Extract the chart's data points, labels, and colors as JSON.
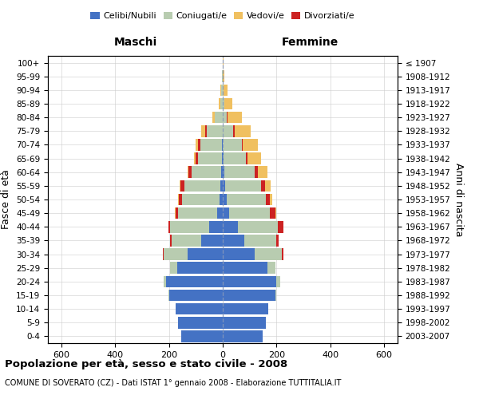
{
  "age_groups": [
    "0-4",
    "5-9",
    "10-14",
    "15-19",
    "20-24",
    "25-29",
    "30-34",
    "35-39",
    "40-44",
    "45-49",
    "50-54",
    "55-59",
    "60-64",
    "65-69",
    "70-74",
    "75-79",
    "80-84",
    "85-89",
    "90-94",
    "95-99",
    "100+"
  ],
  "birth_years": [
    "2003-2007",
    "1998-2002",
    "1993-1997",
    "1988-1992",
    "1983-1987",
    "1978-1982",
    "1973-1977",
    "1968-1972",
    "1963-1967",
    "1958-1962",
    "1953-1957",
    "1948-1952",
    "1943-1947",
    "1938-1942",
    "1933-1937",
    "1928-1932",
    "1923-1927",
    "1918-1922",
    "1913-1917",
    "1908-1912",
    "≤ 1907"
  ],
  "colors": {
    "celibe": "#4472C4",
    "coniugato": "#B8CCB0",
    "vedovo": "#F0C060",
    "divorziato": "#CC2222"
  },
  "maschi": {
    "celibe": [
      155,
      165,
      175,
      200,
      210,
      170,
      130,
      80,
      50,
      20,
      12,
      8,
      5,
      2,
      2,
      0,
      0,
      0,
      0,
      0,
      0
    ],
    "coniugato": [
      0,
      0,
      0,
      3,
      10,
      25,
      90,
      110,
      145,
      145,
      140,
      135,
      110,
      90,
      80,
      60,
      30,
      10,
      5,
      2,
      0
    ],
    "vedovo": [
      0,
      0,
      0,
      0,
      0,
      0,
      0,
      0,
      0,
      2,
      2,
      3,
      5,
      5,
      10,
      15,
      10,
      5,
      3,
      0,
      0
    ],
    "divorziato": [
      0,
      0,
      0,
      0,
      0,
      2,
      3,
      5,
      8,
      10,
      12,
      15,
      12,
      10,
      10,
      5,
      0,
      0,
      0,
      0,
      0
    ]
  },
  "femmine": {
    "nubile": [
      148,
      160,
      170,
      195,
      200,
      165,
      120,
      80,
      55,
      25,
      15,
      8,
      5,
      2,
      0,
      0,
      0,
      0,
      0,
      0,
      0
    ],
    "coniugata": [
      0,
      0,
      0,
      5,
      15,
      30,
      100,
      120,
      150,
      150,
      145,
      135,
      115,
      85,
      70,
      40,
      15,
      5,
      3,
      1,
      0
    ],
    "vedova": [
      0,
      0,
      0,
      0,
      0,
      0,
      0,
      0,
      2,
      5,
      10,
      20,
      35,
      50,
      55,
      60,
      55,
      30,
      15,
      5,
      2
    ],
    "divorziata": [
      0,
      0,
      0,
      0,
      0,
      2,
      5,
      8,
      20,
      20,
      15,
      15,
      10,
      5,
      5,
      5,
      2,
      0,
      0,
      0,
      0
    ]
  },
  "xlim": 650,
  "xticks": [
    -600,
    -400,
    -200,
    0,
    200,
    400,
    600
  ],
  "xticklabels": [
    "600",
    "400",
    "200",
    "0",
    "200",
    "400",
    "600"
  ],
  "title": "Popolazione per età, sesso e stato civile - 2008",
  "subtitle": "COMUNE DI SOVERATO (CZ) - Dati ISTAT 1° gennaio 2008 - Elaborazione TUTTITALIA.IT",
  "ylabel_left": "Fasce di età",
  "ylabel_right": "Anni di nascita",
  "label_maschi": "Maschi",
  "label_femmine": "Femmine",
  "legend_labels": [
    "Celibi/Nubili",
    "Coniugati/e",
    "Vedovi/e",
    "Divorziati/e"
  ],
  "bg_color": "#FFFFFF",
  "grid_color": "#CCCCCC",
  "bar_height": 0.85
}
